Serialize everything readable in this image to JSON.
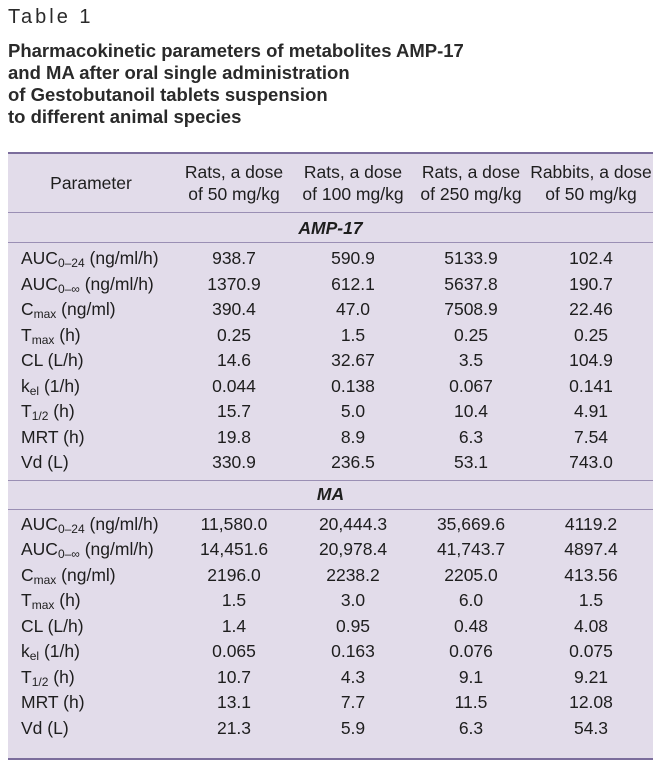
{
  "table_label": "Table 1",
  "caption_lines": [
    "Pharmacokinetic parameters of metabolites AMP-17",
    "and MA after oral single administration",
    "of Gestobutanoil tablets suspension",
    "to different animal species"
  ],
  "header": {
    "parameter": "Parameter",
    "columns": [
      [
        "Rats, a dose",
        "of 50 mg/kg"
      ],
      [
        "Rats, a dose",
        "of 100 mg/kg"
      ],
      [
        "Rats, a dose",
        "of 250 mg/kg"
      ],
      [
        "Rabbits, a dose",
        "of 50 mg/kg"
      ]
    ]
  },
  "sections": [
    {
      "title": "AMP-17",
      "rows": [
        {
          "param": [
            "AUC",
            "0–24",
            " (ng/ml/h)"
          ],
          "values": [
            "938.7",
            "590.9",
            "5133.9",
            "102.4"
          ]
        },
        {
          "param": [
            "AUC",
            "0–∞",
            " (ng/ml/h)"
          ],
          "values": [
            "1370.9",
            "612.1",
            "5637.8",
            "190.7"
          ]
        },
        {
          "param": [
            "C",
            "max",
            " (ng/ml)"
          ],
          "values": [
            "390.4",
            "47.0",
            "7508.9",
            "22.46"
          ]
        },
        {
          "param": [
            "T",
            "max",
            " (h)"
          ],
          "values": [
            "0.25",
            "1.5",
            "0.25",
            "0.25"
          ]
        },
        {
          "param": [
            "CL (L/h)",
            "",
            ""
          ],
          "values": [
            "14.6",
            "32.67",
            "3.5",
            "104.9"
          ]
        },
        {
          "param": [
            "k",
            "el",
            " (1/h)"
          ],
          "values": [
            "0.044",
            "0.138",
            "0.067",
            "0.141"
          ]
        },
        {
          "param": [
            "T",
            "1/2",
            " (h)"
          ],
          "values": [
            "15.7",
            "5.0",
            "10.4",
            "4.91"
          ]
        },
        {
          "param": [
            "MRT (h)",
            "",
            ""
          ],
          "values": [
            "19.8",
            "8.9",
            "6.3",
            "7.54"
          ]
        },
        {
          "param": [
            "Vd (L)",
            "",
            ""
          ],
          "values": [
            "330.9",
            "236.5",
            "53.1",
            "743.0"
          ]
        }
      ]
    },
    {
      "title": "MA",
      "rows": [
        {
          "param": [
            "AUC",
            "0–24",
            " (ng/ml/h)"
          ],
          "values": [
            "11,580.0",
            "20,444.3",
            "35,669.6",
            "4119.2"
          ]
        },
        {
          "param": [
            "AUC",
            "0–∞",
            " (ng/ml/h)"
          ],
          "values": [
            "14,451.6",
            "20,978.4",
            "41,743.7",
            "4897.4"
          ]
        },
        {
          "param": [
            "C",
            "max",
            " (ng/ml)"
          ],
          "values": [
            "2196.0",
            "2238.2",
            "2205.0",
            "413.56"
          ]
        },
        {
          "param": [
            "T",
            "max",
            " (h)"
          ],
          "values": [
            "1.5",
            "3.0",
            "6.0",
            "1.5"
          ]
        },
        {
          "param": [
            "CL (L/h)",
            "",
            ""
          ],
          "values": [
            "1.4",
            "0.95",
            "0.48",
            "4.08"
          ]
        },
        {
          "param": [
            "k",
            "el",
            " (1/h)"
          ],
          "values": [
            "0.065",
            "0.163",
            "0.076",
            "0.075"
          ]
        },
        {
          "param": [
            "T",
            "1/2",
            " (h)"
          ],
          "values": [
            "10.7",
            "4.3",
            "9.1",
            "9.21"
          ]
        },
        {
          "param": [
            "MRT (h)",
            "",
            ""
          ],
          "values": [
            "13.1",
            "7.7",
            "11.5",
            "12.08"
          ]
        },
        {
          "param": [
            "Vd (L)",
            "",
            ""
          ],
          "values": [
            "21.3",
            "5.9",
            "6.3",
            "54.3"
          ]
        }
      ]
    }
  ]
}
